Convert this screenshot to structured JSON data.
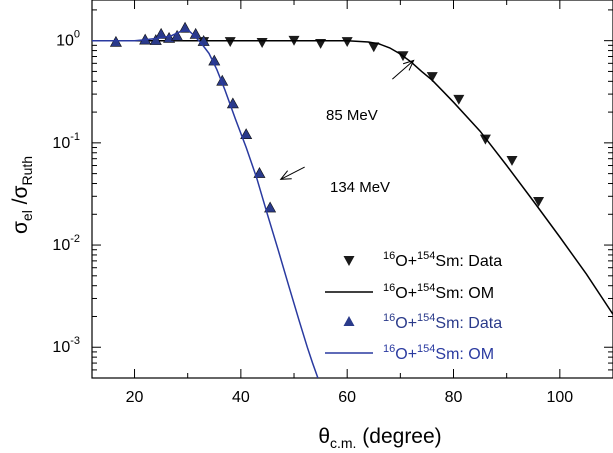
{
  "chart_data": {
    "type": "scatter",
    "xscale": "linear",
    "yscale": "log",
    "xlim": [
      12,
      110
    ],
    "ylim": [
      0.0005,
      2.5
    ],
    "x_ticks": [
      20,
      40,
      60,
      80,
      100
    ],
    "y_ticks": [
      0.001,
      0.01,
      0.1,
      1
    ],
    "grid": false,
    "legend_position": "lower-right",
    "xlabel": {
      "main": "θ",
      "sub": "c.m.",
      "unit": " (degree)"
    },
    "ylabel": {
      "p1": "σ",
      "s1": "el",
      "p2": " /σ",
      "s2": "Ruth"
    },
    "annotations": [
      {
        "text": "85 MeV",
        "arrow_from": [
          68.5,
          0.42
        ],
        "arrow_to": [
          72.5,
          0.64
        ]
      },
      {
        "text": "134 MeV",
        "arrow_from": [
          52,
          0.058
        ],
        "arrow_to": [
          47.5,
          0.044
        ]
      }
    ],
    "series": [
      {
        "kind": "points",
        "marker": "triangle-down",
        "color": "#1a1a1a",
        "legend": {
          "pre": "16",
          "a": "O+",
          "sup": "154",
          "b": "Sm: Data"
        },
        "x": [
          33,
          38,
          44,
          50,
          55,
          60,
          65,
          70.5,
          76,
          81,
          86,
          91,
          96
        ],
        "y": [
          0.99,
          0.99,
          0.97,
          1.02,
          0.95,
          0.99,
          0.88,
          0.72,
          0.45,
          0.27,
          0.11,
          0.068,
          0.027
        ]
      },
      {
        "kind": "line",
        "color": "#000000",
        "legend": {
          "pre": "16",
          "a": "O+",
          "sup": "154",
          "b": "Sm: OM"
        },
        "x": [
          12,
          30,
          50,
          60,
          64,
          66,
          68,
          70,
          72,
          74,
          76,
          78,
          80,
          85,
          90,
          95,
          100,
          105,
          110
        ],
        "y": [
          1.0,
          1.0,
          1.0,
          1.0,
          0.97,
          0.93,
          0.85,
          0.74,
          0.62,
          0.5,
          0.41,
          0.32,
          0.25,
          0.13,
          0.06,
          0.027,
          0.012,
          0.0052,
          0.0021
        ]
      },
      {
        "kind": "points",
        "marker": "triangle-up",
        "color": "#2a3a8a",
        "legend": {
          "pre": "16",
          "a": "O+",
          "sup": "154",
          "b": "Sm: Data"
        },
        "x": [
          16.5,
          22,
          24,
          25,
          26.5,
          28,
          29.5,
          31.5,
          33,
          35,
          36.5,
          38.5,
          41,
          43.5,
          45.5
        ],
        "y": [
          0.96,
          1.01,
          1.0,
          1.15,
          1.05,
          1.1,
          1.32,
          1.15,
          0.98,
          0.63,
          0.4,
          0.24,
          0.12,
          0.05,
          0.023
        ]
      },
      {
        "kind": "line",
        "color": "#2a3aa0",
        "legend": {
          "pre": "16",
          "a": "O+",
          "sup": "154",
          "b": "Sm: OM"
        },
        "x": [
          12,
          15,
          18,
          20,
          22,
          24,
          25.5,
          27,
          28.5,
          30,
          31,
          32.5,
          34,
          35.5,
          37,
          39,
          41,
          43,
          45,
          47,
          49,
          51,
          52.5,
          53.5,
          54.5
        ],
        "y": [
          1.0,
          1.0,
          1.0,
          1.0,
          1.02,
          1.05,
          1.08,
          1.12,
          1.22,
          1.28,
          1.15,
          0.95,
          0.75,
          0.52,
          0.33,
          0.17,
          0.09,
          0.045,
          0.02,
          0.009,
          0.004,
          0.0018,
          0.001,
          0.0007,
          0.0005
        ]
      }
    ]
  }
}
